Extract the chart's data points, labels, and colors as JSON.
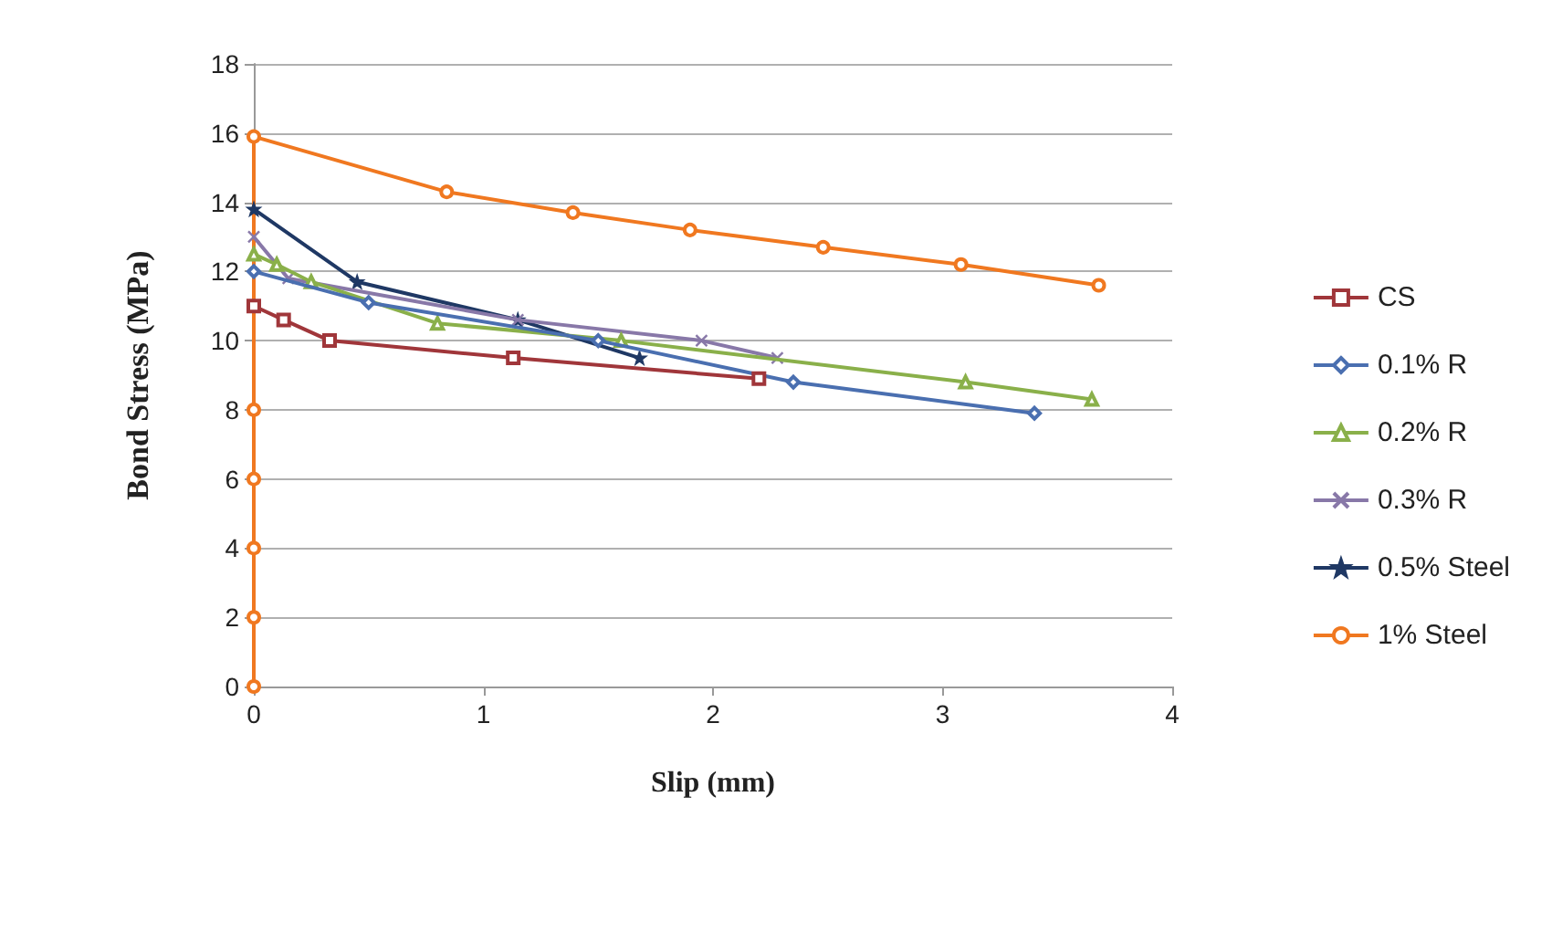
{
  "chart_data": {
    "type": "line",
    "xlabel": "Slip (mm)",
    "ylabel": "Bond Stress (MPa)",
    "xlim": [
      0,
      4
    ],
    "xticks": [
      0,
      1,
      2,
      3,
      4
    ],
    "ylim": [
      0,
      18
    ],
    "yticks": [
      0,
      2,
      4,
      6,
      8,
      10,
      12,
      14,
      16,
      18
    ],
    "grid": "y",
    "legend": "right",
    "series": [
      {
        "name": "CS",
        "color": "#a0363a",
        "marker": "square",
        "x": [
          0,
          0.13,
          0.33,
          1.13,
          2.2
        ],
        "values": [
          11,
          10.6,
          10.0,
          9.5,
          8.9
        ]
      },
      {
        "name": "0.1% R",
        "color": "#4a6fb0",
        "marker": "diamond",
        "x": [
          0,
          0.5,
          1.5,
          2.35,
          3.4
        ],
        "values": [
          12,
          11.1,
          10.0,
          8.8,
          7.9
        ]
      },
      {
        "name": "0.2% R",
        "color": "#8ab04a",
        "marker": "triangle",
        "x": [
          0,
          0.1,
          0.25,
          0.8,
          1.6,
          3.1,
          3.65
        ],
        "values": [
          12.5,
          12.2,
          11.7,
          10.5,
          10.0,
          8.8,
          8.3
        ]
      },
      {
        "name": "0.3% R",
        "color": "#8878a8",
        "marker": "cross",
        "x": [
          0,
          0.15,
          1.15,
          1.95,
          2.28
        ],
        "values": [
          13,
          11.8,
          10.6,
          10.0,
          9.5
        ]
      },
      {
        "name": "0.5% Steel",
        "color": "#1f3864",
        "marker": "star",
        "x": [
          0,
          0.45,
          1.15,
          1.68
        ],
        "values": [
          13.8,
          11.7,
          10.6,
          9.5
        ]
      },
      {
        "name": "1% Steel",
        "color": "#f07820",
        "marker": "circle",
        "x": [
          0,
          0,
          0,
          0,
          0,
          0,
          0.84,
          1.39,
          1.9,
          2.48,
          3.08,
          3.68
        ],
        "values": [
          0,
          2,
          4,
          6,
          8,
          15.9,
          14.3,
          13.7,
          13.2,
          12.7,
          12.2,
          11.6
        ]
      }
    ]
  }
}
